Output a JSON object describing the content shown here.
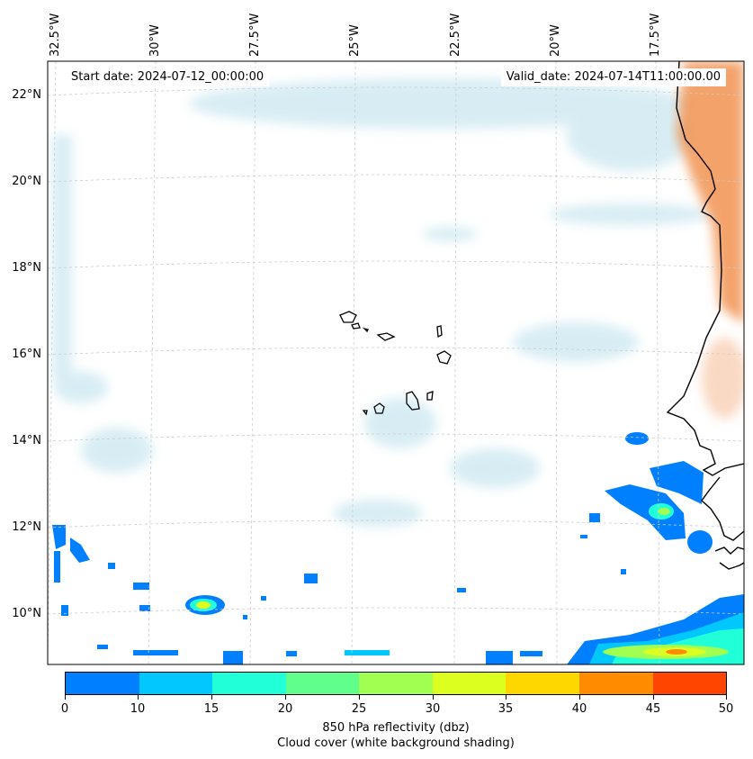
{
  "map": {
    "start_date_label": "Start date: 2024-07-12_00:00:00",
    "valid_date_label": "Valid_date: 2024-07-14T11:00:00.00",
    "longitude_labels": [
      "32.5°W",
      "30°W",
      "27.5°W",
      "25°W",
      "22.5°W",
      "20°W",
      "17.5°W"
    ],
    "latitude_labels": [
      "22°N",
      "20°N",
      "18°N",
      "16°N",
      "14°N",
      "12°N",
      "10°N"
    ],
    "islands": [
      "santo-antao",
      "sao-vicente",
      "santa-luzia",
      "sao-nicolau",
      "sal",
      "boa-vista",
      "maio",
      "santiago",
      "fogo",
      "brava"
    ]
  },
  "colorbar": {
    "ticks": [
      "0",
      "10",
      "15",
      "20",
      "25",
      "30",
      "35",
      "40",
      "45",
      "50"
    ],
    "colors": [
      "#0080ff",
      "#00c8ff",
      "#20ffd8",
      "#60ff8c",
      "#a0ff50",
      "#dcff20",
      "#ffd700",
      "#ff8c00",
      "#ff4500"
    ],
    "label": "850 hPa reflectivity (dbz)",
    "sublabel": "Cloud cover (white background shading)"
  },
  "colors": {
    "dust": "#f08c46",
    "cloud": "#a8d8e6",
    "coast": "#000000",
    "grid": "#cccccc"
  }
}
